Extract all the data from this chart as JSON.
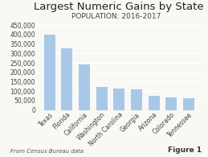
{
  "title": "Largest Numeric Gains by State",
  "subtitle": "POPULATION: 2016-2017",
  "categories": [
    "Texas",
    "Florida",
    "California",
    "Washington",
    "North Carolina",
    "Georgia",
    "Arizona",
    "Colorado",
    "Tennessee"
  ],
  "values": [
    400000,
    325000,
    240000,
    123000,
    115000,
    108000,
    75000,
    65000,
    63000
  ],
  "bar_color": "#a8c8e8",
  "ylim": [
    0,
    450000
  ],
  "yticks": [
    0,
    50000,
    100000,
    150000,
    200000,
    250000,
    300000,
    350000,
    400000,
    450000
  ],
  "ytick_labels": [
    "0",
    "50,000",
    "100,000",
    "150,000",
    "200,000",
    "250,000",
    "300,000",
    "350,000",
    "400,000",
    "450,000"
  ],
  "footnote": "From Census Bureau data",
  "figure_label": "Figure 1",
  "title_fontsize": 9.5,
  "subtitle_fontsize": 6.5,
  "tick_fontsize": 5.5,
  "footnote_fontsize": 5.0,
  "background_color": "#f8f8f5"
}
